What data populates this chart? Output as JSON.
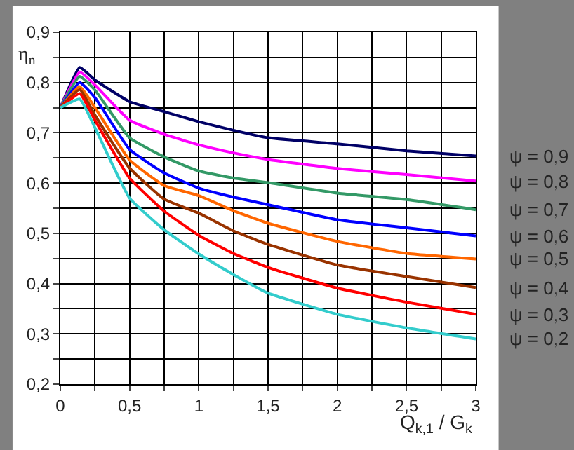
{
  "chart_data": {
    "type": "line",
    "xlabel": "Q$_{k,1}$ / G$_{k}$",
    "ylabel": "η$_{n}$",
    "x": [
      0,
      0.14,
      0.25,
      0.5,
      0.75,
      1,
      1.25,
      1.5,
      2,
      2.5,
      3
    ],
    "series": [
      {
        "name": "ψ = 0,9",
        "color": "#000066",
        "values": [
          0.75,
          0.83,
          0.805,
          0.762,
          0.742,
          0.722,
          0.705,
          0.69,
          0.678,
          0.664,
          0.654
        ]
      },
      {
        "name": "ψ = 0,8",
        "color": "#ff00ff",
        "values": [
          0.75,
          0.821,
          0.795,
          0.725,
          0.697,
          0.676,
          0.66,
          0.647,
          0.629,
          0.617,
          0.604
        ]
      },
      {
        "name": "ψ = 0,7",
        "color": "#339966",
        "values": [
          0.75,
          0.812,
          0.785,
          0.69,
          0.652,
          0.624,
          0.61,
          0.601,
          0.58,
          0.567,
          0.547
        ]
      },
      {
        "name": "ψ = 0,6",
        "color": "#0000ff",
        "values": [
          0.75,
          0.8,
          0.77,
          0.667,
          0.62,
          0.59,
          0.572,
          0.557,
          0.527,
          0.511,
          0.495
        ]
      },
      {
        "name": "ψ = 0,5",
        "color": "#ff6600",
        "values": [
          0.75,
          0.792,
          0.75,
          0.646,
          0.595,
          0.575,
          0.545,
          0.52,
          0.484,
          0.46,
          0.449
        ]
      },
      {
        "name": "ψ = 0,4",
        "color": "#993300",
        "values": [
          0.75,
          0.786,
          0.735,
          0.63,
          0.568,
          0.54,
          0.505,
          0.478,
          0.437,
          0.414,
          0.392
        ]
      },
      {
        "name": "ψ = 0,3",
        "color": "#ff0000",
        "values": [
          0.75,
          0.778,
          0.725,
          0.61,
          0.544,
          0.496,
          0.46,
          0.432,
          0.391,
          0.363,
          0.339
        ]
      },
      {
        "name": "ψ = 0,2",
        "color": "#33cccc",
        "values": [
          0.75,
          0.767,
          0.71,
          0.57,
          0.507,
          0.459,
          0.418,
          0.381,
          0.339,
          0.312,
          0.29
        ]
      }
    ],
    "xlim": [
      0,
      3
    ],
    "ylim": [
      0.2,
      0.9
    ],
    "xticks": [
      0,
      {
        "value": 0.25,
        "label": null
      },
      {
        "value": 0.5,
        "label": "0,5"
      },
      {
        "value": 0.75,
        "label": null
      },
      1,
      {
        "value": 1.25,
        "label": null
      },
      {
        "value": 1.5,
        "label": "1,5"
      },
      {
        "value": 1.75,
        "label": null
      },
      2,
      {
        "value": 2.25,
        "label": null
      },
      {
        "value": 2.5,
        "label": "2,5"
      },
      {
        "value": 2.75,
        "label": null
      },
      3
    ],
    "yticks": [
      {
        "value": 0.2,
        "label": "0,2"
      },
      {
        "value": 0.25,
        "label": null
      },
      {
        "value": 0.3,
        "label": "0,3"
      },
      {
        "value": 0.35,
        "label": null
      },
      {
        "value": 0.4,
        "label": "0,4"
      },
      {
        "value": 0.45,
        "label": null
      },
      {
        "value": 0.5,
        "label": "0,5"
      },
      {
        "value": 0.55,
        "label": null
      },
      {
        "value": 0.6,
        "label": "0,6"
      },
      {
        "value": 0.65,
        "label": null
      },
      {
        "value": 0.7,
        "label": "0,7"
      },
      {
        "value": 0.75,
        "label": null
      },
      {
        "value": 0.8,
        "label": "0,8"
      },
      {
        "value": 0.85,
        "label": null
      },
      {
        "value": 0.9,
        "label": "0,9"
      }
    ],
    "grid": true,
    "legend": false,
    "marker": "none",
    "line_style": "solid"
  }
}
